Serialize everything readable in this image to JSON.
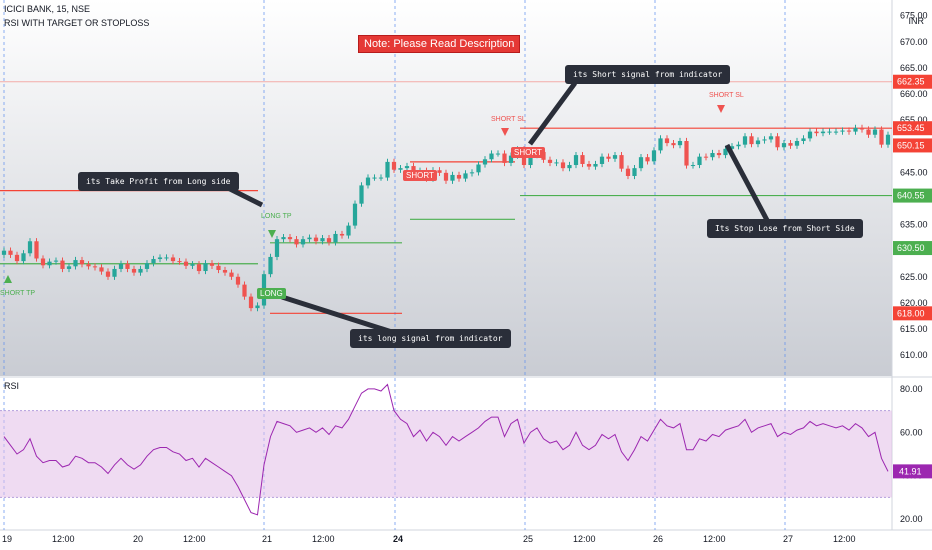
{
  "header": {
    "symbol_line": "ICICI BANK, 15, NSE",
    "indicator_line": "RSI WITH TARGET OR STOPLOSS",
    "currency": "INR",
    "note": "Note: Please Read Description",
    "rsi_label": "RSI"
  },
  "annotations": {
    "take_profit": "its Take Profit from Long side",
    "long_signal": "its long signal from indicator",
    "short_signal": "its Short signal from indicator",
    "stop_loss": "Its Stop Lose from Short Side",
    "long_tp": "LONG TP",
    "long": "LONG",
    "short_sl_1": "SHORT SL",
    "short_sl_2": "SHORT SL",
    "short_1": "SHORT",
    "short_2": "SHORT",
    "short_tp": "SHORT TP"
  },
  "colors": {
    "up": "#26a69a",
    "down": "#ef5350",
    "target_line": "#4caf50",
    "stop_line": "#f44336",
    "rsi_line": "#9c27b0",
    "rsi_band": "#e1bee7"
  },
  "chart_data": [
    {
      "type": "candlestick",
      "y_ticks": [
        "675.00",
        "670.00",
        "665.00",
        "660.00",
        "655.00",
        "650.00",
        "645.00",
        "640.00",
        "635.00",
        "630.00",
        "625.00",
        "620.00",
        "615.00",
        "610.00"
      ],
      "ylim": [
        606,
        678
      ],
      "x_ticks": [
        "19",
        "12:00",
        "20",
        "12:00",
        "21",
        "12:00",
        "24",
        "25",
        "12:00",
        "26",
        "12:00",
        "27",
        "12:00"
      ],
      "price_labels": [
        {
          "value": 662.35,
          "color": "#f44336"
        },
        {
          "value": 653.45,
          "color": "#f44336"
        },
        {
          "value": 650.15,
          "color": "#f44336"
        },
        {
          "value": 640.55,
          "color": "#4caf50"
        },
        {
          "value": 630.5,
          "color": "#4caf50"
        },
        {
          "value": 618.0,
          "color": "#f44336"
        }
      ],
      "levels": [
        {
          "value": 641.5,
          "color": "#f44336",
          "x_range": [
            0,
            258
          ]
        },
        {
          "value": 627.5,
          "color": "#4caf50",
          "x_range": [
            0,
            258
          ]
        },
        {
          "value": 631.5,
          "color": "#4caf50",
          "x_range": [
            270,
            402
          ]
        },
        {
          "value": 618.0,
          "color": "#f44336",
          "x_range": [
            270,
            402
          ]
        },
        {
          "value": 647.0,
          "color": "#f44336",
          "x_range": [
            410,
            515
          ]
        },
        {
          "value": 636.0,
          "color": "#4caf50",
          "x_range": [
            410,
            515
          ]
        },
        {
          "value": 653.45,
          "color": "#f44336",
          "x_range": [
            520,
            892
          ]
        },
        {
          "value": 640.55,
          "color": "#4caf50",
          "x_range": [
            520,
            892
          ]
        }
      ],
      "close": [
        630.0,
        629.2,
        628.0,
        629.5,
        631.8,
        628.5,
        627.2,
        627.9,
        628.1,
        626.5,
        627.0,
        628.2,
        627.4,
        627.0,
        626.8,
        626.0,
        625.0,
        626.5,
        627.5,
        626.5,
        625.8,
        626.5,
        627.6,
        628.4,
        628.7,
        628.7,
        628.0,
        627.9,
        627.1,
        627.4,
        626.1,
        627.6,
        627.1,
        626.3,
        625.8,
        625.0,
        623.5,
        621.2,
        619.0,
        619.5,
        625.5,
        628.8,
        632.2,
        632.6,
        632.2,
        631.2,
        632.2,
        632.5,
        631.8,
        632.4,
        631.6,
        633.2,
        632.9,
        634.8,
        639.0,
        642.5,
        644.0,
        644.0,
        644.0,
        647.0,
        645.5,
        645.8,
        646.2,
        644.2,
        645.3,
        643.8,
        645.4,
        644.9,
        643.4,
        644.5,
        643.8,
        644.8,
        645.0,
        646.5,
        647.5,
        648.6,
        648.6,
        646.8,
        648.2,
        649.4,
        646.4,
        648.3,
        648.9,
        647.4,
        646.8,
        646.9,
        645.8,
        646.4,
        648.3,
        646.6,
        646.1,
        646.6,
        648.0,
        647.6,
        648.3,
        645.7,
        644.3,
        645.8,
        647.9,
        647.1,
        649.2,
        651.5,
        650.6,
        650.2,
        651.0,
        646.3,
        646.4,
        648.0,
        647.9,
        648.7,
        648.3,
        649.5,
        650.0,
        650.3,
        651.9,
        650.4,
        651.1,
        651.3,
        651.9,
        649.8,
        650.6,
        650.1,
        651.0,
        651.5,
        652.8,
        652.5,
        652.8,
        652.8,
        652.8,
        653.0,
        652.8,
        653.5,
        653.2,
        652.2,
        653.2,
        650.3,
        652.2
      ],
      "rsi": {
        "ylim": [
          15,
          85
        ],
        "y_ticks": [
          "80.00",
          "60.00",
          "40.00",
          "20.00"
        ],
        "bands": [
          30,
          70
        ],
        "current_label": "41.91",
        "values": [
          58,
          54,
          50,
          52,
          57,
          49,
          46,
          47,
          47,
          44,
          45,
          49,
          48,
          46,
          46,
          44,
          41,
          45,
          48,
          45,
          43,
          45,
          49,
          52,
          53,
          53,
          51,
          50,
          47,
          48,
          44,
          48,
          46,
          44,
          42,
          40,
          35,
          29,
          23,
          22,
          45,
          58,
          65,
          64,
          63,
          60,
          61,
          62,
          60,
          62,
          59,
          63,
          62,
          66,
          72,
          78,
          80,
          80,
          79,
          82,
          70,
          66,
          64,
          58,
          61,
          56,
          60,
          58,
          54,
          58,
          56,
          58,
          60,
          62,
          65,
          67,
          67,
          58,
          64,
          66,
          55,
          60,
          62,
          57,
          55,
          56,
          52,
          54,
          60,
          54,
          52,
          54,
          59,
          57,
          59,
          51,
          47,
          52,
          58,
          56,
          61,
          66,
          63,
          62,
          64,
          52,
          52,
          57,
          56,
          59,
          58,
          61,
          62,
          63,
          66,
          60,
          62,
          63,
          64,
          58,
          60,
          59,
          61,
          62,
          65,
          63,
          64,
          63,
          62,
          63,
          61,
          64,
          62,
          58,
          60,
          48,
          42
        ]
      }
    }
  ]
}
